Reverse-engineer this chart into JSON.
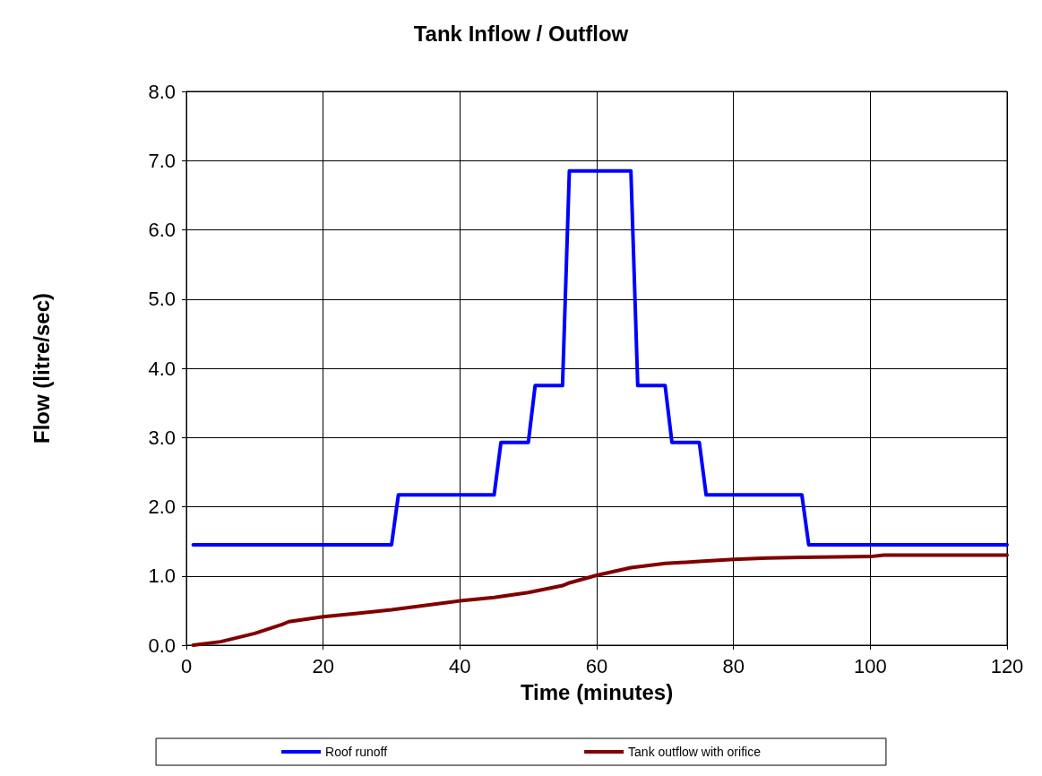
{
  "chart_data": {
    "type": "line",
    "title": "Tank Inflow / Outflow",
    "xlabel": "Time (minutes)",
    "ylabel": "Flow (litre/sec)",
    "xlim": [
      0,
      120
    ],
    "xticks": [
      0,
      20,
      40,
      60,
      80,
      100,
      120
    ],
    "ylim": [
      0,
      8
    ],
    "yticks": [
      {
        "value": 0,
        "label": "0.0"
      },
      {
        "value": 1,
        "label": "1.0"
      },
      {
        "value": 2,
        "label": "2.0"
      },
      {
        "value": 3,
        "label": "3.0"
      },
      {
        "value": 4,
        "label": "4.0"
      },
      {
        "value": 5,
        "label": "5.0"
      },
      {
        "value": 6,
        "label": "6.0"
      },
      {
        "value": 7,
        "label": "7.0"
      },
      {
        "value": 8,
        "label": "8.0"
      }
    ],
    "grid": true,
    "legend": "bottom",
    "marker": "none",
    "line_style": "solid",
    "series": [
      {
        "name": "Roof runoff",
        "color": "#0000ff",
        "x": [
          1,
          30,
          31,
          45,
          46,
          50,
          51,
          55,
          56,
          65,
          66,
          70,
          71,
          75,
          76,
          90,
          91,
          120
        ],
        "values": [
          1.45,
          1.45,
          2.17,
          2.17,
          2.93,
          2.93,
          3.75,
          3.75,
          6.85,
          6.85,
          3.75,
          3.75,
          2.93,
          2.93,
          2.17,
          2.17,
          1.45,
          1.45
        ]
      },
      {
        "name": "Tank outflow with orifice",
        "color": "#800000",
        "x": [
          1,
          5,
          10,
          14,
          15,
          20,
          25,
          30,
          40,
          45,
          50,
          55,
          56,
          60,
          65,
          70,
          75,
          80,
          85,
          90,
          100,
          102,
          120
        ],
        "values": [
          0,
          0.05,
          0.17,
          0.3,
          0.34,
          0.41,
          0.46,
          0.51,
          0.64,
          0.69,
          0.76,
          0.86,
          0.9,
          1.01,
          1.12,
          1.18,
          1.21,
          1.24,
          1.26,
          1.27,
          1.28,
          1.3,
          1.3
        ]
      }
    ]
  }
}
